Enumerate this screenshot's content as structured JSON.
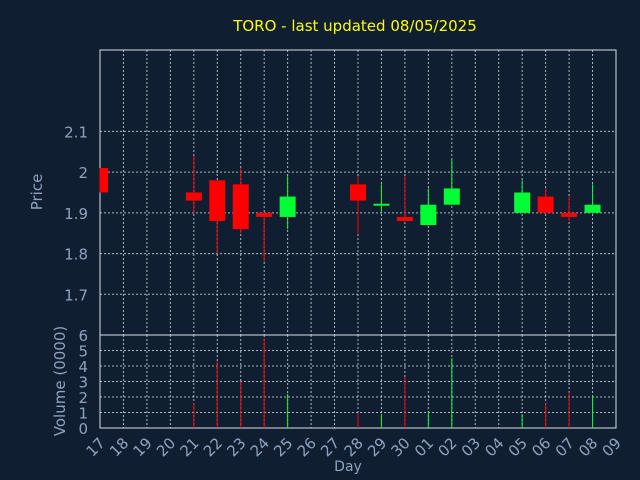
{
  "colors": {
    "background": "#0f1e31",
    "title": "#ffff00",
    "axis_text": "#8fa3bf",
    "grid": "#d8dde6",
    "up": "#00ff33",
    "down": "#ff0000"
  },
  "chart_data": [
    {
      "type": "candlestick",
      "title": "TORO - last updated 08/05/2025",
      "ylabel": "Price",
      "ylim": [
        1.6,
        2.3
      ],
      "yticks": [
        "1.7",
        "1.8",
        "1.9",
        "2",
        "2.1"
      ],
      "grid": true,
      "days": [
        "17",
        "18",
        "19",
        "20",
        "21",
        "22",
        "23",
        "24",
        "25",
        "26",
        "27",
        "28",
        "29",
        "30",
        "01",
        "02",
        "03",
        "04",
        "05",
        "06",
        "07",
        "08",
        "09"
      ],
      "candles": [
        {
          "day": "17",
          "open": 2.01,
          "close": 1.95,
          "high": 2.01,
          "low": 1.95
        },
        {
          "day": "21",
          "open": 1.95,
          "close": 1.93,
          "high": 2.04,
          "low": 1.9
        },
        {
          "day": "22",
          "open": 1.98,
          "close": 1.88,
          "high": 1.98,
          "low": 1.8
        },
        {
          "day": "23",
          "open": 1.97,
          "close": 1.86,
          "high": 2.01,
          "low": 1.85
        },
        {
          "day": "24",
          "open": 1.9,
          "close": 1.89,
          "high": 1.9,
          "low": 1.78
        },
        {
          "day": "25",
          "open": 1.89,
          "close": 1.94,
          "high": 1.99,
          "low": 1.86
        },
        {
          "day": "28",
          "open": 1.97,
          "close": 1.93,
          "high": 1.99,
          "low": 1.85
        },
        {
          "day": "29",
          "open": 1.92,
          "close": 1.92,
          "high": 1.97,
          "low": 1.9
        },
        {
          "day": "30",
          "open": 1.89,
          "close": 1.88,
          "high": 1.99,
          "low": 1.88
        },
        {
          "day": "01",
          "open": 1.87,
          "close": 1.92,
          "high": 1.96,
          "low": 1.87
        },
        {
          "day": "02",
          "open": 1.92,
          "close": 1.96,
          "high": 2.03,
          "low": 1.92
        },
        {
          "day": "05",
          "open": 1.9,
          "close": 1.95,
          "high": 1.98,
          "low": 1.9
        },
        {
          "day": "06",
          "open": 1.94,
          "close": 1.9,
          "high": 1.96,
          "low": 1.9
        },
        {
          "day": "07",
          "open": 1.9,
          "close": 1.89,
          "high": 1.94,
          "low": 1.88
        },
        {
          "day": "08",
          "open": 1.9,
          "close": 1.92,
          "high": 1.97,
          "low": 1.9
        }
      ]
    },
    {
      "type": "bar",
      "ylabel": "Volume (0000)",
      "xlabel": "Day",
      "ylim": [
        0,
        6
      ],
      "yticks": [
        "0",
        "1",
        "2",
        "3",
        "4",
        "5",
        "6"
      ],
      "grid": true,
      "days": [
        "17",
        "18",
        "19",
        "20",
        "21",
        "22",
        "23",
        "24",
        "25",
        "26",
        "27",
        "28",
        "29",
        "30",
        "01",
        "02",
        "03",
        "04",
        "05",
        "06",
        "07",
        "08",
        "09"
      ],
      "volumes": [
        {
          "day": "21",
          "value": 1.6,
          "direction": "down"
        },
        {
          "day": "22",
          "value": 4.3,
          "direction": "down"
        },
        {
          "day": "23",
          "value": 3.0,
          "direction": "down"
        },
        {
          "day": "24",
          "value": 5.8,
          "direction": "down"
        },
        {
          "day": "25",
          "value": 2.2,
          "direction": "up"
        },
        {
          "day": "28",
          "value": 1.0,
          "direction": "down"
        },
        {
          "day": "29",
          "value": 0.9,
          "direction": "up"
        },
        {
          "day": "30",
          "value": 3.3,
          "direction": "down"
        },
        {
          "day": "01",
          "value": 1.1,
          "direction": "up"
        },
        {
          "day": "02",
          "value": 4.5,
          "direction": "up"
        },
        {
          "day": "05",
          "value": 0.9,
          "direction": "up"
        },
        {
          "day": "06",
          "value": 1.6,
          "direction": "down"
        },
        {
          "day": "07",
          "value": 2.3,
          "direction": "down"
        },
        {
          "day": "08",
          "value": 2.1,
          "direction": "up"
        }
      ]
    }
  ]
}
